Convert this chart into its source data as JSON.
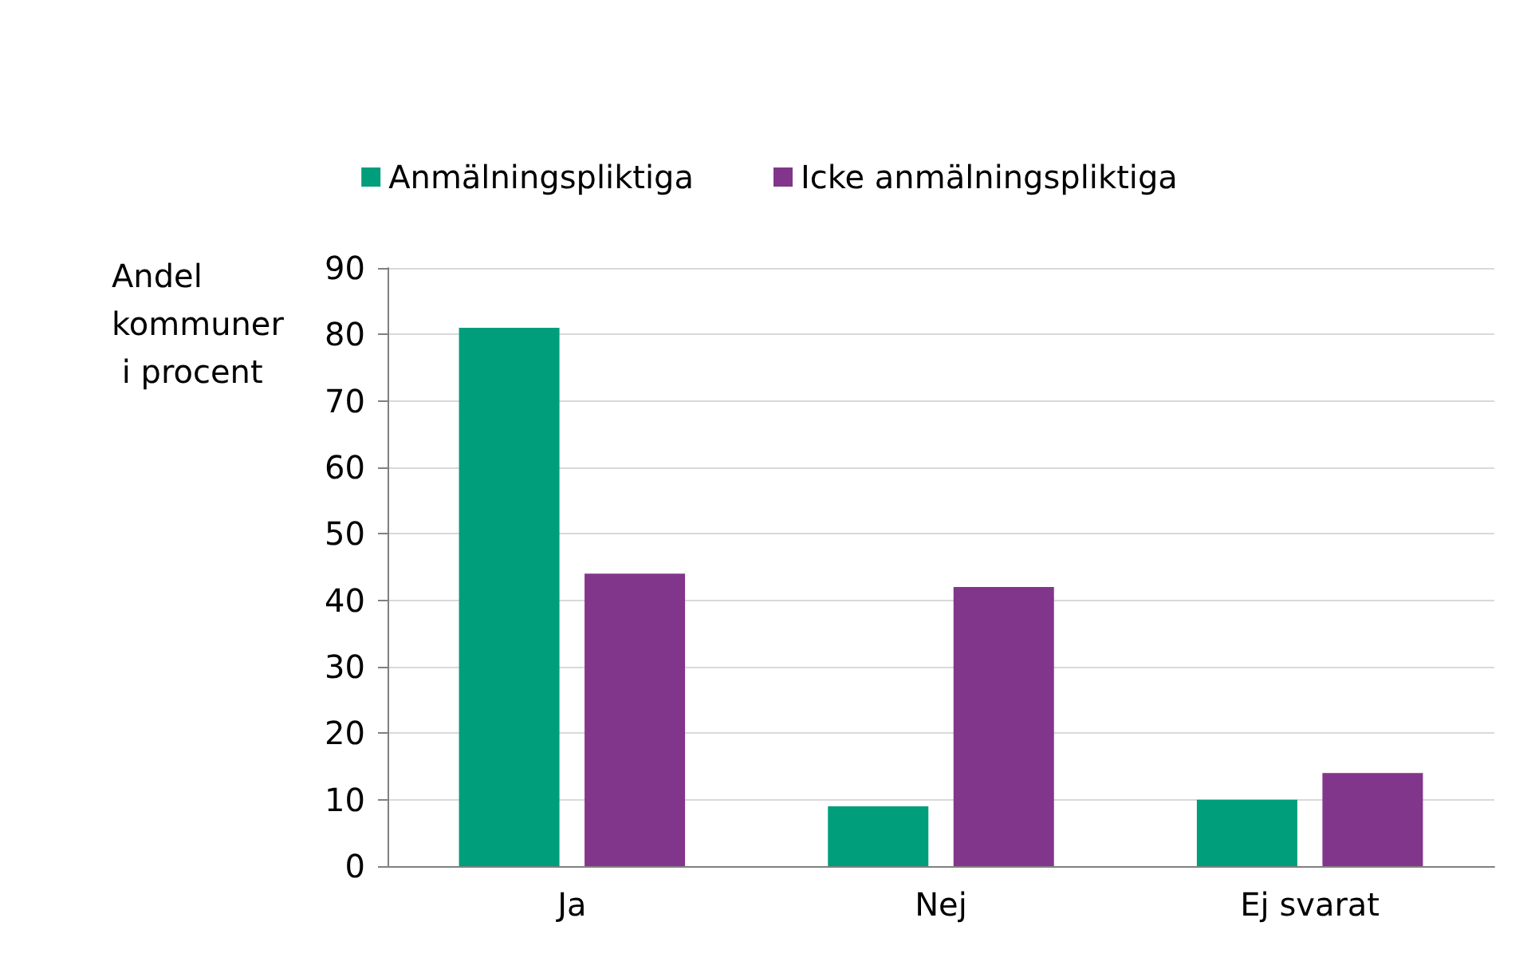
{
  "chart_data": {
    "type": "bar",
    "ylabel": "Andel kommuner i procent",
    "categories": [
      "Ja",
      "Nej",
      "Ej svarat"
    ],
    "series": [
      {
        "name": "Anmälningspliktiga",
        "color": "#009e7b",
        "values": [
          81,
          9,
          10
        ]
      },
      {
        "name": "Icke anmälningspliktiga",
        "color": "#82368b",
        "values": [
          44,
          42,
          14
        ]
      }
    ],
    "ylim": [
      0,
      90
    ],
    "yticks": [
      0,
      10,
      20,
      30,
      40,
      50,
      60,
      70,
      80,
      90
    ],
    "grid": "y",
    "legend": "top"
  }
}
